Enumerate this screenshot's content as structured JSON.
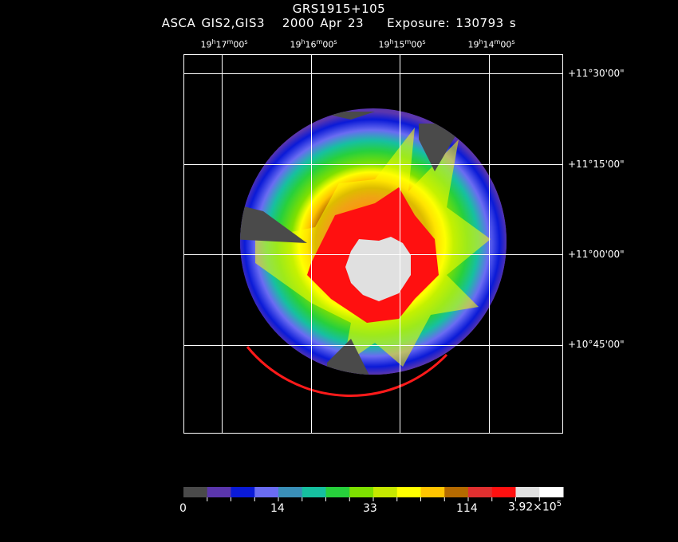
{
  "header": {
    "object": "GRS1915+105",
    "subtitle": "ASCA GIS2,GIS3   2000 Apr 23    Exposure: 130793 s"
  },
  "axes": {
    "ra_labels": [
      {
        "h": "19",
        "m": "17",
        "s": "00"
      },
      {
        "h": "19",
        "m": "16",
        "s": "00"
      },
      {
        "h": "19",
        "m": "15",
        "s": "00"
      },
      {
        "h": "19",
        "m": "14",
        "s": "00"
      }
    ],
    "dec_labels": [
      "+11°30'00\"",
      "+11°15'00\"",
      "+11°00'00\"",
      "+10°45'00\""
    ]
  },
  "colorbar": {
    "colors": [
      "#4a4a4a",
      "#5b36ad",
      "#0a1ad8",
      "#6a6cf2",
      "#3a8fb8",
      "#16c0a0",
      "#27d03c",
      "#7ee000",
      "#c6e800",
      "#ffff00",
      "#ffc400",
      "#b56a00",
      "#e03030",
      "#ff1010",
      "#e0e0e0",
      "#ffffff"
    ],
    "labels": [
      "0",
      "14",
      "33",
      "114",
      "3.92×10"
    ],
    "exponent": "5"
  }
}
